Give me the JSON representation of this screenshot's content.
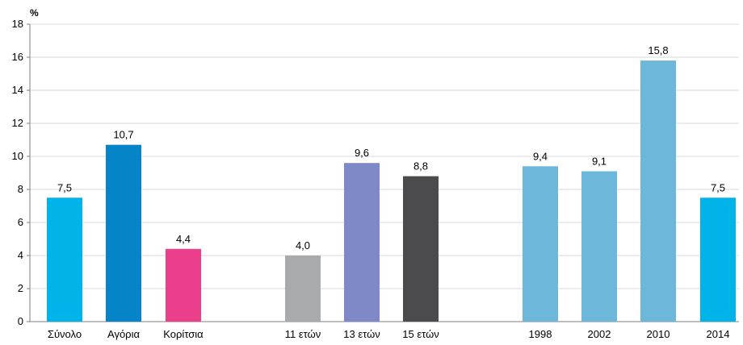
{
  "chart_data": {
    "type": "bar",
    "title": "",
    "ylabel": "%",
    "ylim": [
      0,
      18
    ],
    "yticks": [
      0,
      2,
      4,
      6,
      8,
      10,
      12,
      14,
      16,
      18
    ],
    "grid": true,
    "legend": "none",
    "bars": [
      {
        "category": "Σύνολο",
        "value": 7.5,
        "label": "7,5",
        "color": "#00b4ea"
      },
      {
        "category": "Αγόρια",
        "value": 10.7,
        "label": "10,7",
        "color": "#0585c8"
      },
      {
        "category": "Κορίτσια",
        "value": 4.4,
        "label": "4,4",
        "color": "#ec3f8b"
      },
      {
        "category": "11 ετών",
        "value": 4.0,
        "label": "4,0",
        "color": "#a9aaac"
      },
      {
        "category": "13 ετών",
        "value": 9.6,
        "label": "9,6",
        "color": "#8089c8"
      },
      {
        "category": "15 ετών",
        "value": 8.8,
        "label": "8,8",
        "color": "#4b4b4d"
      },
      {
        "category": "1998",
        "value": 9.4,
        "label": "9,4",
        "color": "#6db7db"
      },
      {
        "category": "2002",
        "value": 9.1,
        "label": "9,1",
        "color": "#6db7db"
      },
      {
        "category": "2010",
        "value": 15.8,
        "label": "15,8",
        "color": "#6db7db"
      },
      {
        "category": "2014",
        "value": 7.5,
        "label": "7,5",
        "color": "#00b4ea"
      }
    ]
  },
  "colors": {
    "grid": "#d9d9d9",
    "axis": "#7f7f7f",
    "title": "#19b24b"
  }
}
